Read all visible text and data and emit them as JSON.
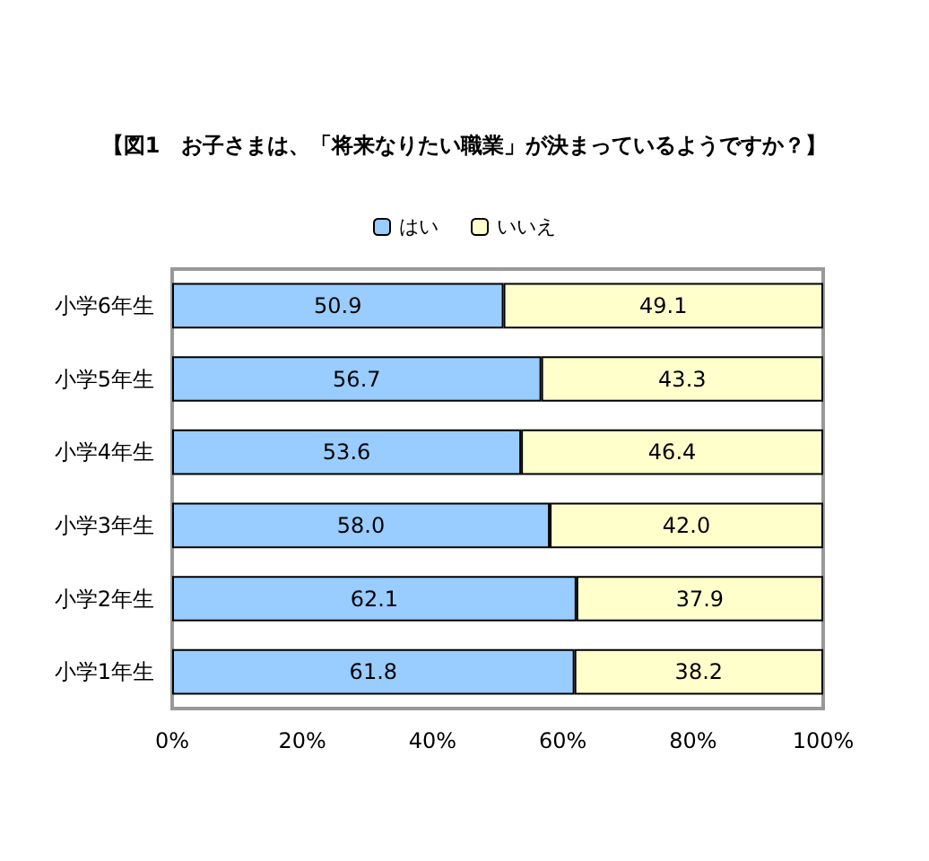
{
  "chart_data": {
    "type": "bar",
    "orientation": "horizontal",
    "stacked": true,
    "title": "【図1　お子さまは、「将来なりたい職業」が決まっているようですか？】",
    "categories": [
      "小学6年生",
      "小学5年生",
      "小学4年生",
      "小学3年生",
      "小学2年生",
      "小学1年生"
    ],
    "series": [
      {
        "name": "はい",
        "color": "#99ccff",
        "values": [
          50.9,
          56.7,
          53.6,
          58.0,
          62.1,
          61.8
        ],
        "value_labels": [
          "50.9",
          "56.7",
          "53.6",
          "58.0",
          "62.1",
          "61.8"
        ]
      },
      {
        "name": "いいえ",
        "color": "#ffffcc",
        "values": [
          49.1,
          43.3,
          46.4,
          42.0,
          37.9,
          38.2
        ],
        "value_labels": [
          "49.1",
          "43.3",
          "46.4",
          "42.0",
          "37.9",
          "38.2"
        ]
      }
    ],
    "xlim": [
      0,
      100
    ],
    "xticks": [
      {
        "value": 0,
        "label": "0%"
      },
      {
        "value": 20,
        "label": "20%"
      },
      {
        "value": 40,
        "label": "40%"
      },
      {
        "value": 60,
        "label": "60%"
      },
      {
        "value": 80,
        "label": "80%"
      },
      {
        "value": 100,
        "label": "100%"
      }
    ],
    "grid": false,
    "legend": "top"
  }
}
